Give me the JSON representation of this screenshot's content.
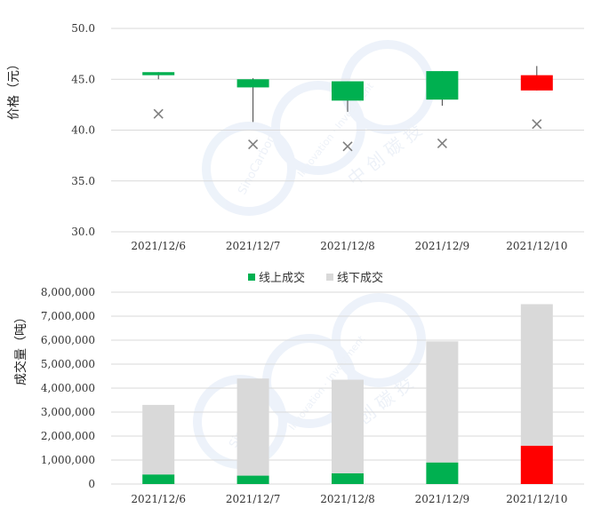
{
  "watermark": {
    "brand_latin": "SinoCarbon",
    "tagline": "Innovation · Investment",
    "brand_cn": "中 创 碳 投"
  },
  "chart_data": [
    {
      "type": "candlestick",
      "ylabel": "价格（元）",
      "ylim": [
        30,
        50
      ],
      "yticks": [
        "30.0",
        "35.0",
        "40.0",
        "45.0",
        "50.0"
      ],
      "categories": [
        "2021/12/6",
        "2021/12/7",
        "2021/12/8",
        "2021/12/9",
        "2021/12/10"
      ],
      "candles": [
        {
          "open": 45.7,
          "close": 45.4,
          "high": 45.7,
          "low": 45.0,
          "color": "#00b050"
        },
        {
          "open": 45.0,
          "close": 44.2,
          "high": 45.1,
          "low": 40.8,
          "color": "#00b050"
        },
        {
          "open": 44.8,
          "close": 42.9,
          "high": 44.8,
          "low": 41.8,
          "color": "#00b050"
        },
        {
          "open": 45.8,
          "close": 43.0,
          "high": 45.8,
          "low": 42.4,
          "color": "#00b050"
        },
        {
          "open": 43.9,
          "close": 45.4,
          "high": 46.3,
          "low": 43.9,
          "color": "#ff0000"
        }
      ],
      "x_markers": [
        41.6,
        38.6,
        38.4,
        38.7,
        40.6
      ],
      "marker_color": "#7f7f7f",
      "grid": true
    },
    {
      "type": "stacked-bar",
      "ylabel": "成交量（吨）",
      "ylim": [
        0,
        8000000
      ],
      "yticks": [
        "0",
        "1,000,000",
        "2,000,000",
        "3,000,000",
        "4,000,000",
        "5,000,000",
        "6,000,000",
        "7,000,000",
        "8,000,000"
      ],
      "categories": [
        "2021/12/6",
        "2021/12/7",
        "2021/12/8",
        "2021/12/9",
        "2021/12/10"
      ],
      "legend_position": "top-center",
      "series": [
        {
          "name": "线上成交",
          "color": "#00b050",
          "values": [
            400000,
            350000,
            450000,
            900000,
            1600000
          ],
          "point_colors": [
            "#00b050",
            "#00b050",
            "#00b050",
            "#00b050",
            "#ff0000"
          ]
        },
        {
          "name": "线下成交",
          "color": "#d9d9d9",
          "values": [
            2900000,
            4050000,
            3900000,
            5050000,
            5900000
          ]
        }
      ],
      "grid": true
    }
  ]
}
